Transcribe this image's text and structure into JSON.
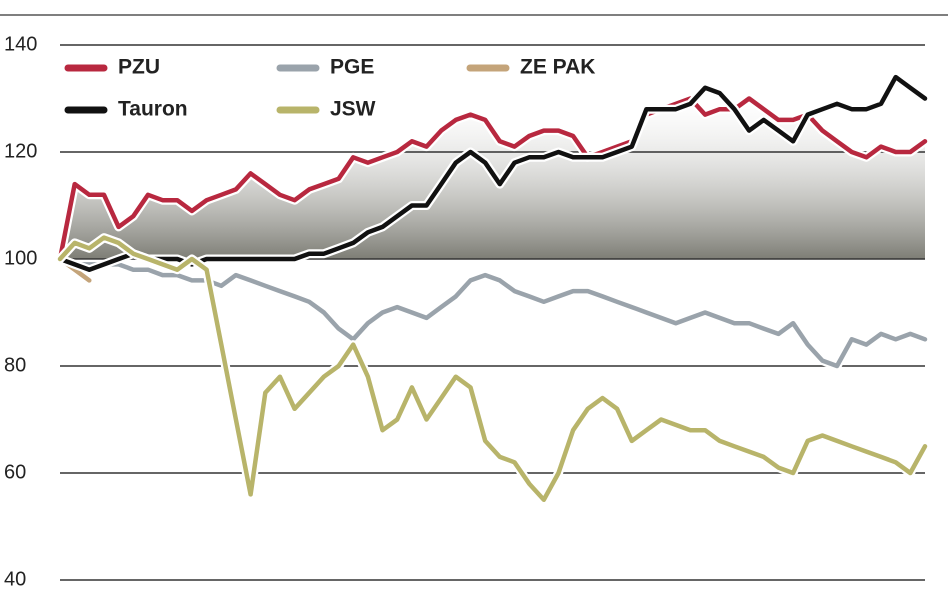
{
  "chart_data": {
    "type": "line",
    "ylim": [
      40,
      140
    ],
    "yticks": [
      40,
      60,
      80,
      100,
      120,
      140
    ],
    "grid": true,
    "series": [
      {
        "name": "PZU",
        "color": "#b8283f",
        "values": [
          100,
          114,
          112,
          112,
          106,
          108,
          112,
          111,
          111,
          109,
          111,
          112,
          113,
          116,
          114,
          112,
          111,
          113,
          114,
          115,
          119,
          118,
          119,
          120,
          122,
          121,
          124,
          126,
          127,
          126,
          122,
          121,
          123,
          124,
          124,
          123,
          119,
          120,
          121,
          122,
          127,
          128,
          129,
          130,
          127,
          128,
          128,
          130,
          128,
          126,
          126,
          127,
          124,
          122,
          120,
          119,
          121,
          120,
          120,
          122
        ]
      },
      {
        "name": "PGE",
        "color": "#9aa3ab",
        "values": [
          100,
          99,
          99,
          99,
          99,
          98,
          98,
          97,
          97,
          96,
          96,
          95,
          97,
          96,
          95,
          94,
          93,
          92,
          90,
          87,
          85,
          88,
          90,
          91,
          90,
          89,
          91,
          93,
          96,
          97,
          96,
          94,
          93,
          92,
          93,
          94,
          94,
          93,
          92,
          91,
          90,
          89,
          88,
          89,
          90,
          89,
          88,
          88,
          87,
          86,
          88,
          84,
          81,
          80,
          85,
          84,
          86,
          85,
          86,
          85
        ]
      },
      {
        "name": "ZE PAK",
        "color": "#c4a47a",
        "values": [
          100,
          98,
          96,
          null,
          null,
          null,
          null,
          null,
          null,
          null,
          null,
          null,
          null,
          null,
          null,
          null,
          null,
          null,
          null,
          null,
          null,
          null,
          null,
          null,
          null,
          null,
          null,
          null,
          null,
          null,
          null,
          null,
          null,
          null,
          null,
          null,
          null,
          null,
          null,
          null,
          null,
          null,
          null,
          null,
          null,
          null,
          null,
          null,
          null,
          null,
          null,
          null,
          null,
          null,
          null,
          null,
          null,
          null,
          null,
          null
        ]
      },
      {
        "name": "Tauron",
        "color": "#111111",
        "values": [
          100,
          99,
          98,
          99,
          100,
          101,
          100,
          100,
          100,
          99,
          100,
          100,
          100,
          100,
          100,
          100,
          100,
          101,
          101,
          102,
          103,
          105,
          106,
          108,
          110,
          110,
          114,
          118,
          120,
          118,
          114,
          118,
          119,
          119,
          120,
          119,
          119,
          119,
          120,
          121,
          128,
          128,
          128,
          129,
          132,
          131,
          128,
          124,
          126,
          124,
          122,
          127,
          128,
          129,
          128,
          128,
          129,
          134,
          132,
          130
        ]
      },
      {
        "name": "JSW",
        "color": "#b8b46a",
        "values": [
          100,
          103,
          102,
          104,
          103,
          101,
          100,
          99,
          98,
          100,
          98,
          84,
          70,
          56,
          75,
          78,
          72,
          75,
          78,
          80,
          84,
          78,
          68,
          70,
          76,
          70,
          74,
          78,
          76,
          66,
          63,
          62,
          58,
          55,
          60,
          68,
          72,
          74,
          72,
          66,
          68,
          70,
          69,
          68,
          68,
          66,
          65,
          64,
          63,
          61,
          60,
          66,
          67,
          66,
          65,
          64,
          63,
          62,
          60,
          65
        ]
      }
    ]
  }
}
